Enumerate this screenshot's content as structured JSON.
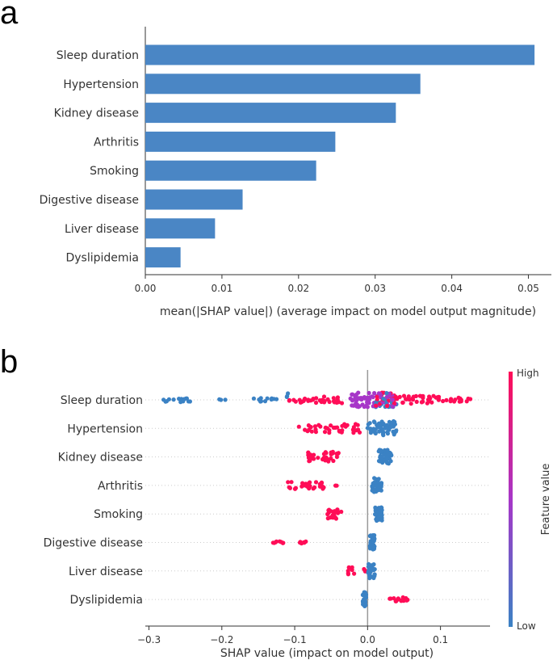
{
  "panels": {
    "a": "a",
    "b": "b"
  },
  "colors": {
    "bar": "#4a86c5",
    "high": "#ff0d57",
    "mid": "#a736c8",
    "low": "#3b82c4",
    "axis": "#333333",
    "zero_line": "#999999",
    "grid_dot": "#cccccc"
  },
  "chart_data": [
    {
      "type": "bar",
      "orientation": "horizontal",
      "categories": [
        "Sleep duration",
        "Hypertension",
        "Kidney disease",
        "Arthritis",
        "Smoking",
        "Digestive disease",
        "Liver disease",
        "Dyslipidemia"
      ],
      "values": [
        0.0508,
        0.0359,
        0.0327,
        0.0248,
        0.0223,
        0.0127,
        0.0091,
        0.0046
      ],
      "xlim": [
        0,
        0.053
      ],
      "xticks": [
        0.0,
        0.01,
        0.02,
        0.03,
        0.04,
        0.05
      ],
      "xtick_labels": [
        "0.00",
        "0.01",
        "0.02",
        "0.03",
        "0.04",
        "0.05"
      ],
      "xlabel": "mean(|SHAP value|) (average impact on model output magnitude)"
    },
    {
      "type": "scatter",
      "subtype": "shap-beeswarm",
      "categories": [
        "Sleep duration",
        "Hypertension",
        "Kidney disease",
        "Arthritis",
        "Smoking",
        "Digestive disease",
        "Liver disease",
        "Dyslipidemia"
      ],
      "xlim": [
        -0.305,
        0.168
      ],
      "xticks": [
        -0.3,
        -0.2,
        -0.1,
        0.0,
        0.1
      ],
      "xtick_labels": [
        "−0.3",
        "−0.2",
        "−0.1",
        "0.0",
        "0.1"
      ],
      "xlabel": "SHAP value (impact on model output)",
      "colorbar": {
        "title": "Feature value",
        "high_label": "High",
        "low_label": "Low"
      },
      "feature_clusters": [
        {
          "feature": "Sleep duration",
          "groups": [
            {
              "range": [
                -0.285,
                -0.24
              ],
              "color": "low",
              "n": 16,
              "spread": 0.3
            },
            {
              "range": [
                -0.205,
                -0.195
              ],
              "color": "low",
              "n": 3,
              "spread": 0.2
            },
            {
              "range": [
                -0.17,
                -0.115
              ],
              "color": "low",
              "n": 12,
              "spread": 0.25
            },
            {
              "range": [
                -0.112,
                -0.108
              ],
              "color": "low",
              "n": 3,
              "spread": 0.9
            },
            {
              "range": [
                -0.108,
                -0.075
              ],
              "color": "high",
              "n": 14,
              "spread": 0.4
            },
            {
              "range": [
                -0.075,
                -0.025
              ],
              "color": "high",
              "n": 22,
              "spread": 0.45
            },
            {
              "range": [
                -0.025,
                0.01
              ],
              "color": "mid",
              "n": 45,
              "spread": 1.0
            },
            {
              "range": [
                0.01,
                0.04
              ],
              "color": "mix",
              "n": 70,
              "spread": 1.0
            },
            {
              "range": [
                0.04,
                0.1
              ],
              "color": "high",
              "n": 34,
              "spread": 0.55
            },
            {
              "range": [
                0.1,
                0.145
              ],
              "color": "high",
              "n": 14,
              "spread": 0.3
            }
          ]
        },
        {
          "feature": "Hypertension",
          "groups": [
            {
              "range": [
                -0.095,
                -0.01
              ],
              "color": "high",
              "n": 42,
              "spread": 0.6
            },
            {
              "range": [
                0.0,
                0.04
              ],
              "color": "low",
              "n": 55,
              "spread": 1.0
            }
          ]
        },
        {
          "feature": "Kidney disease",
          "groups": [
            {
              "range": [
                -0.082,
                -0.035
              ],
              "color": "high",
              "n": 34,
              "spread": 0.7
            },
            {
              "range": [
                0.015,
                0.033
              ],
              "color": "low",
              "n": 45,
              "spread": 1.0
            }
          ]
        },
        {
          "feature": "Arthritis",
          "groups": [
            {
              "range": [
                -0.11,
                -0.06
              ],
              "color": "high",
              "n": 32,
              "spread": 0.5
            },
            {
              "range": [
                -0.045,
                -0.04
              ],
              "color": "high",
              "n": 2,
              "spread": 0.1
            },
            {
              "range": [
                0.006,
                0.02
              ],
              "color": "low",
              "n": 38,
              "spread": 1.0
            }
          ]
        },
        {
          "feature": "Smoking",
          "groups": [
            {
              "range": [
                -0.055,
                -0.035
              ],
              "color": "high",
              "n": 22,
              "spread": 0.7
            },
            {
              "range": [
                0.01,
                0.02
              ],
              "color": "low",
              "n": 40,
              "spread": 1.0
            }
          ]
        },
        {
          "feature": "Digestive disease",
          "groups": [
            {
              "range": [
                -0.13,
                -0.115
              ],
              "color": "high",
              "n": 8,
              "spread": 0.15
            },
            {
              "range": [
                -0.095,
                -0.08
              ],
              "color": "high",
              "n": 6,
              "spread": 0.15
            },
            {
              "range": [
                0.003,
                0.01
              ],
              "color": "low",
              "n": 32,
              "spread": 1.0
            }
          ]
        },
        {
          "feature": "Liver disease",
          "groups": [
            {
              "range": [
                -0.027,
                -0.018
              ],
              "color": "high",
              "n": 8,
              "spread": 0.5
            },
            {
              "range": [
                -0.005,
                -0.001
              ],
              "color": "high",
              "n": 4,
              "spread": 0.4
            },
            {
              "range": [
                0.0,
                0.01
              ],
              "color": "low",
              "n": 32,
              "spread": 1.0
            }
          ]
        },
        {
          "feature": "Dyslipidemia",
          "groups": [
            {
              "range": [
                -0.007,
                -0.002
              ],
              "color": "low",
              "n": 28,
              "spread": 1.0
            },
            {
              "range": [
                0.03,
                0.055
              ],
              "color": "high",
              "n": 18,
              "spread": 0.3
            }
          ]
        }
      ]
    }
  ]
}
